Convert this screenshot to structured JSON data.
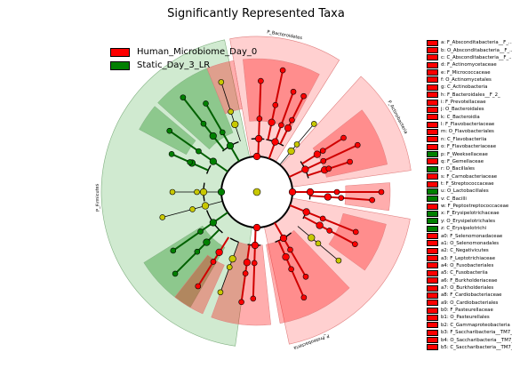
{
  "title": "Significantly Represented Taxa",
  "colors": {
    "human": "#ff0000",
    "static": "#008000",
    "human_bg": "#ffc8c8",
    "static_bg": "#c8e6c8",
    "neutral_node": "#c8c800"
  },
  "legend": [
    {
      "label": "Human_Microbiome_Day_0",
      "color": "#ff0000"
    },
    {
      "label": "Static_Day_3_LR",
      "color": "#008000"
    }
  ],
  "phylum_labels": [
    "P_Bacteroidetes",
    "P_Actinobacteria",
    "P_Proteobacteria",
    "P_Firmicutes"
  ],
  "taxa": [
    {
      "label": "a: F_Absconditabacteria__F_...",
      "group": "human"
    },
    {
      "label": "b: O_Absconditabacteria__F_...",
      "group": "human"
    },
    {
      "label": "c: C_Absconditabacteria__F_...",
      "group": "human"
    },
    {
      "label": "d: F_Actinomycetaceae",
      "group": "human"
    },
    {
      "label": "e: F_Micrococcaceae",
      "group": "human"
    },
    {
      "label": "f: O_Actinomycetales",
      "group": "human"
    },
    {
      "label": "g: C_Actinobacteria",
      "group": "human"
    },
    {
      "label": "h: F_Bacteroidales__F_2_",
      "group": "human"
    },
    {
      "label": "i: F_Prevotellaceae",
      "group": "human"
    },
    {
      "label": "j: O_Bacteroidales",
      "group": "human"
    },
    {
      "label": "k: C_Bacteroidia",
      "group": "human"
    },
    {
      "label": "l: F_Flavobacteriaceae",
      "group": "human"
    },
    {
      "label": "m: O_Flavobacteriales",
      "group": "human"
    },
    {
      "label": "n: C_Flavobacteriia",
      "group": "human"
    },
    {
      "label": "o: F_Flavobacteriaceae",
      "group": "human"
    },
    {
      "label": "p: F_Weeksellaceae",
      "group": "static"
    },
    {
      "label": "q: F_Gemellaceae",
      "group": "human"
    },
    {
      "label": "r: O_Bacillales",
      "group": "static"
    },
    {
      "label": "s: F_Carnobacteriaceae",
      "group": "human"
    },
    {
      "label": "t: F_Streptococcaceae",
      "group": "human"
    },
    {
      "label": "u: O_Lactobacillales",
      "group": "static"
    },
    {
      "label": "v: C_Bacilli",
      "group": "static"
    },
    {
      "label": "w: F_Peptostreptococcaceae",
      "group": "human"
    },
    {
      "label": "x: F_Erysipelotrichaceae",
      "group": "static"
    },
    {
      "label": "y: O_Erysipelotrichales",
      "group": "static"
    },
    {
      "label": "z: C_Erysipelotrichi",
      "group": "static"
    },
    {
      "label": "a0: F_Selenomonadaceae",
      "group": "human"
    },
    {
      "label": "a1: O_Selenomonadales",
      "group": "human"
    },
    {
      "label": "a2: C_Negativicutes",
      "group": "human"
    },
    {
      "label": "a3: F_Leptotrichiaceae",
      "group": "human"
    },
    {
      "label": "a4: O_Fusobacteriales",
      "group": "human"
    },
    {
      "label": "a5: C_Fusobacteriia",
      "group": "human"
    },
    {
      "label": "a6: F_Burkholderiaceae",
      "group": "human"
    },
    {
      "label": "a7: O_Burkholderiales",
      "group": "human"
    },
    {
      "label": "a8: F_Cardiobacteriaceae",
      "group": "human"
    },
    {
      "label": "a9: O_Cardiobacteriales",
      "group": "human"
    },
    {
      "label": "b0: F_Pasteurellaceae",
      "group": "human"
    },
    {
      "label": "b1: O_Pasteurellales",
      "group": "human"
    },
    {
      "label": "b2: C_Gammaproteobacteria",
      "group": "human"
    },
    {
      "label": "b3: F_Saccharibacteria__TM7_",
      "group": "human"
    },
    {
      "label": "b4: O_Saccharibacteria__TM7_",
      "group": "human"
    },
    {
      "label": "b5: C_Saccharibacteria__TM7_",
      "group": "human"
    }
  ]
}
